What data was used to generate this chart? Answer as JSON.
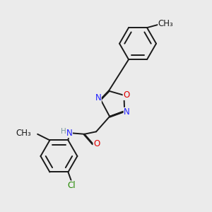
{
  "bg_color": "#ebebeb",
  "bond_color": "#1a1a1a",
  "bond_width": 1.4,
  "atom_colors": {
    "N": "#2020ff",
    "O": "#e00000",
    "Cl": "#228800",
    "C": "#1a1a1a",
    "H": "#7a9a9a"
  },
  "font_size": 8.5,
  "small_font": 7.5
}
